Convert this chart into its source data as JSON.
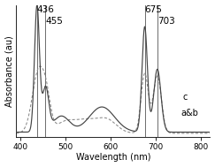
{
  "title": "",
  "xlabel": "Wavelength (nm)",
  "ylabel": "Absorbance (au)",
  "xlim": [
    390,
    820
  ],
  "ylim": [
    0,
    1.0
  ],
  "xticks": [
    400,
    500,
    600,
    700,
    800
  ],
  "annotations": [
    {
      "text": "436",
      "x": 436,
      "ha": "left"
    },
    {
      "text": "455",
      "x": 455,
      "ha": "left"
    },
    {
      "text": "675",
      "x": 675,
      "ha": "left"
    },
    {
      "text": "703",
      "x": 703,
      "ha": "left"
    }
  ],
  "legend_c": {
    "label": "c",
    "fontsize": 7
  },
  "legend_ab": {
    "label": "a&b",
    "fontsize": 7
  },
  "bg_color": "#ffffff",
  "line_c_color": "#444444",
  "line_ab_color": "#888888",
  "ann_line_color": "#555555",
  "ann_fontsize": 7.5
}
